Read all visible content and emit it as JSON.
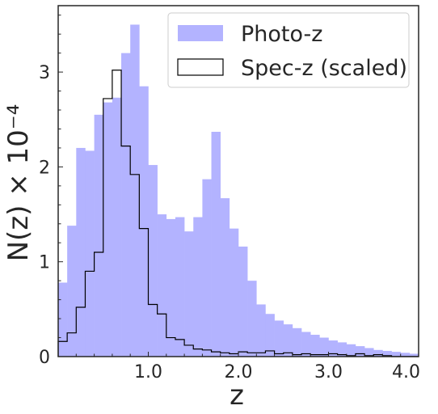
{
  "chart_data": {
    "type": "bar",
    "xlabel": "z",
    "ylabel": "N(z) × 10⁻⁴",
    "xlim": [
      0.0,
      4.0
    ],
    "ylim": [
      0.0,
      3.7
    ],
    "bin_width": 0.1,
    "x_tick_labels": [
      {
        "value": 1.0,
        "label": "1.0"
      },
      {
        "value": 2.0,
        "label": "2.0"
      },
      {
        "value": 3.0,
        "label": "3.0"
      },
      {
        "value": 4.0,
        "label": "4.0"
      }
    ],
    "y_tick_labels": [
      {
        "value": 0,
        "label": "0"
      },
      {
        "value": 1,
        "label": "1"
      },
      {
        "value": 2,
        "label": "2"
      },
      {
        "value": 3,
        "label": "3"
      }
    ],
    "legend": {
      "location": "upper-right",
      "entries": [
        {
          "label": "Photo-z"
        },
        {
          "label": "Spec-z (scaled)"
        }
      ]
    },
    "series": [
      {
        "name": "Photo-z",
        "style": "filled",
        "color": "#b3b3ff",
        "bin_starts": [
          0.0,
          0.1,
          0.2,
          0.3,
          0.4,
          0.5,
          0.6,
          0.7,
          0.8,
          0.9,
          1.0,
          1.1,
          1.2,
          1.3,
          1.4,
          1.5,
          1.6,
          1.7,
          1.8,
          1.9,
          2.0,
          2.1,
          2.2,
          2.3,
          2.4,
          2.5,
          2.6,
          2.7,
          2.8,
          2.9,
          3.0,
          3.1,
          3.2,
          3.3,
          3.4,
          3.5,
          3.6,
          3.7,
          3.8,
          3.9
        ],
        "values": [
          0.78,
          1.38,
          2.2,
          2.17,
          2.55,
          2.68,
          2.73,
          3.2,
          3.5,
          2.85,
          2.02,
          1.5,
          1.45,
          1.47,
          1.32,
          1.47,
          1.87,
          2.37,
          1.67,
          1.35,
          1.16,
          0.8,
          0.55,
          0.45,
          0.38,
          0.34,
          0.3,
          0.26,
          0.23,
          0.2,
          0.17,
          0.15,
          0.13,
          0.11,
          0.09,
          0.07,
          0.06,
          0.05,
          0.04,
          0.03
        ]
      },
      {
        "name": "Spec-z (scaled)",
        "style": "step",
        "color": "#000000",
        "bin_starts": [
          0.0,
          0.1,
          0.2,
          0.3,
          0.4,
          0.5,
          0.6,
          0.7,
          0.8,
          0.9,
          1.0,
          1.1,
          1.2,
          1.3,
          1.4,
          1.5,
          1.6,
          1.7,
          1.8,
          1.9,
          2.0,
          2.1,
          2.2,
          2.3,
          2.4,
          2.5,
          2.6,
          2.7,
          2.8,
          2.9,
          3.0,
          3.1,
          3.2,
          3.3,
          3.4,
          3.5,
          3.6,
          3.7,
          3.8,
          3.9
        ],
        "values": [
          0.16,
          0.25,
          0.52,
          0.9,
          1.1,
          2.72,
          3.02,
          2.22,
          1.92,
          1.35,
          0.55,
          0.45,
          0.2,
          0.18,
          0.12,
          0.08,
          0.07,
          0.05,
          0.04,
          0.03,
          0.05,
          0.04,
          0.04,
          0.06,
          0.03,
          0.04,
          0.02,
          0.03,
          0.02,
          0.02,
          0.03,
          0.02,
          0.01,
          0.03,
          0.01,
          0.02,
          0.01,
          0.0,
          0.0,
          0.0
        ]
      }
    ]
  }
}
